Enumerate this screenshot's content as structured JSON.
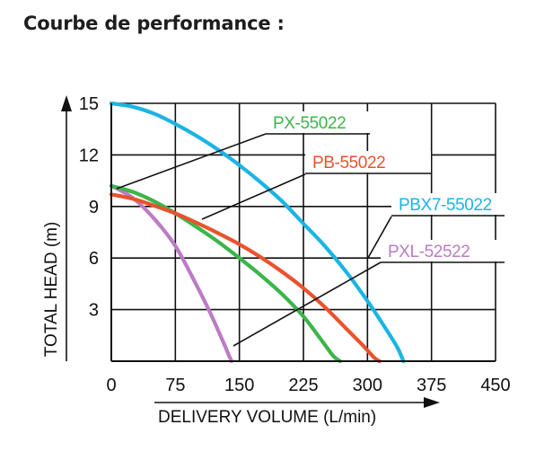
{
  "page": {
    "heading": "Courbe de performance :"
  },
  "chart_data": {
    "type": "line",
    "xlabel": "DELIVERY VOLUME (L/min)",
    "ylabel": "TOTAL HEAD (m)",
    "xlim": [
      0,
      450
    ],
    "ylim": [
      0,
      15
    ],
    "xticks": [
      0,
      75,
      150,
      225,
      300,
      375,
      450
    ],
    "yticks": [
      3,
      6,
      9,
      12,
      15
    ],
    "xtick_labels": [
      "0",
      "75",
      "150",
      "225",
      "300",
      "375",
      "450"
    ],
    "ytick_labels": [
      "3",
      "6",
      "9",
      "12",
      "15"
    ],
    "grid": true,
    "legend": "callout labels with leader lines",
    "series": [
      {
        "name": "PX-55022",
        "color": "#3cb54a",
        "x": [
          0,
          25,
          50,
          75,
          100,
          125,
          150,
          175,
          200,
          225,
          245,
          260,
          268
        ],
        "y": [
          10.2,
          9.85,
          9.3,
          8.6,
          7.8,
          6.95,
          6.0,
          5.0,
          3.9,
          2.6,
          1.3,
          0.3,
          0
        ]
      },
      {
        "name": "PB-55022",
        "color": "#e8532d",
        "x": [
          0,
          25,
          50,
          75,
          100,
          125,
          150,
          175,
          200,
          225,
          250,
          275,
          295,
          308,
          314
        ],
        "y": [
          9.7,
          9.45,
          9.05,
          8.6,
          8.05,
          7.45,
          6.8,
          6.05,
          5.2,
          4.25,
          3.15,
          1.9,
          0.9,
          0.2,
          0
        ]
      },
      {
        "name": "PBX7-55022",
        "color": "#1cb4e3",
        "x": [
          0,
          25,
          50,
          75,
          100,
          125,
          150,
          175,
          200,
          225,
          250,
          275,
          300,
          320,
          335,
          342
        ],
        "y": [
          15,
          14.8,
          14.4,
          13.8,
          13.1,
          12.3,
          11.4,
          10.4,
          9.3,
          8.0,
          6.7,
          5.2,
          3.5,
          2.0,
          0.8,
          0
        ]
      },
      {
        "name": "PXL-52522",
        "color": "#bb7cc4",
        "x": [
          0,
          25,
          50,
          75,
          100,
          115,
          125,
          133,
          138,
          141
        ],
        "y": [
          10.2,
          9.5,
          8.3,
          6.7,
          4.4,
          2.9,
          1.8,
          0.9,
          0.3,
          0
        ]
      }
    ]
  }
}
